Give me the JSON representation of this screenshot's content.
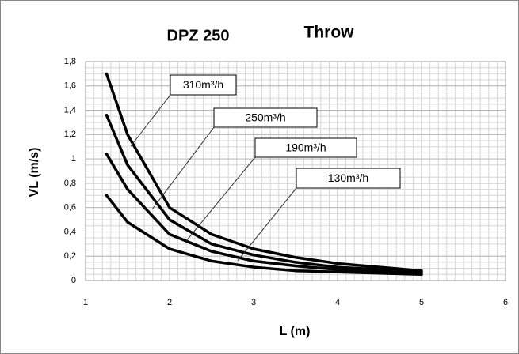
{
  "chart_data": {
    "type": "line",
    "title": "DPZ 250",
    "subtitle": "Throw",
    "x_label": "L (m)",
    "y_label": "VL (m/s)",
    "x": [
      1.25,
      1.5,
      2,
      2.5,
      3,
      3.5,
      4,
      4.5,
      5
    ],
    "series": [
      {
        "name": "310m³/h",
        "color": "#000000",
        "values": [
          1.7,
          1.2,
          0.6,
          0.38,
          0.26,
          0.19,
          0.14,
          0.11,
          0.08
        ]
      },
      {
        "name": "250m³/h",
        "color": "#000000",
        "values": [
          1.36,
          0.95,
          0.5,
          0.3,
          0.21,
          0.15,
          0.11,
          0.09,
          0.07
        ]
      },
      {
        "name": "190m³/h",
        "color": "#000000",
        "values": [
          1.04,
          0.75,
          0.38,
          0.24,
          0.16,
          0.12,
          0.09,
          0.07,
          0.06
        ]
      },
      {
        "name": "130m³/h",
        "color": "#000000",
        "values": [
          0.7,
          0.48,
          0.26,
          0.16,
          0.11,
          0.08,
          0.07,
          0.06,
          0.05
        ]
      }
    ],
    "xlim": [
      1,
      6
    ],
    "xticks": [
      1,
      2,
      3,
      4,
      5,
      6
    ],
    "ylim": [
      0,
      1.8
    ],
    "yticks": [
      0,
      {
        "value": 0.2,
        "label": "0,2"
      },
      {
        "value": 0.4,
        "label": "0,4"
      },
      {
        "value": 0.6,
        "label": "0,6"
      },
      {
        "value": 0.8,
        "label": "0,8"
      },
      1,
      {
        "value": 1.2,
        "label": "1,2"
      },
      {
        "value": 1.4,
        "label": "1,4"
      },
      {
        "value": 1.6,
        "label": "1,6"
      },
      {
        "value": 1.8,
        "label": "1,8"
      }
    ],
    "grid": true
  }
}
